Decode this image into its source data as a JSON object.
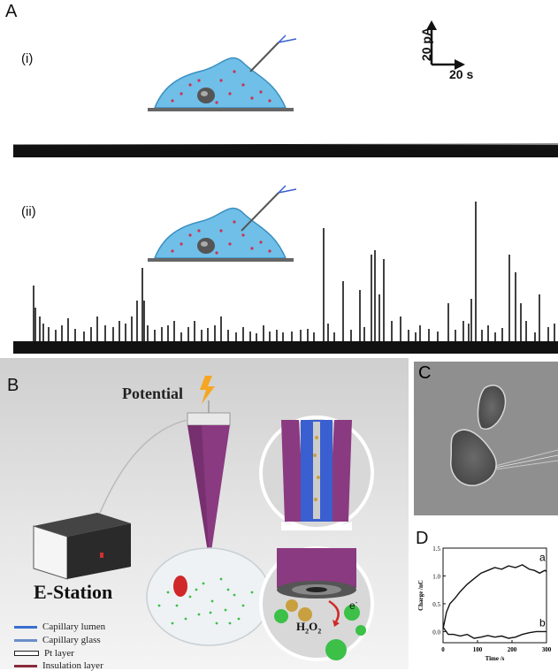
{
  "panel_a": {
    "letter": "A",
    "sub_i": "(i)",
    "sub_ii": "(ii)",
    "scale_y": "20 pA",
    "scale_x": "20 s",
    "spikes": [
      [
        23,
        65
      ],
      [
        25,
        40
      ],
      [
        30,
        30
      ],
      [
        34,
        22
      ],
      [
        40,
        18
      ],
      [
        48,
        15
      ],
      [
        55,
        20
      ],
      [
        62,
        28
      ],
      [
        70,
        16
      ],
      [
        80,
        13
      ],
      [
        88,
        18
      ],
      [
        95,
        30
      ],
      [
        104,
        20
      ],
      [
        113,
        18
      ],
      [
        120,
        25
      ],
      [
        127,
        22
      ],
      [
        134,
        30
      ],
      [
        140,
        48
      ],
      [
        146,
        85
      ],
      [
        148,
        48
      ],
      [
        152,
        20
      ],
      [
        160,
        15
      ],
      [
        168,
        18
      ],
      [
        175,
        20
      ],
      [
        182,
        25
      ],
      [
        190,
        12
      ],
      [
        198,
        18
      ],
      [
        205,
        25
      ],
      [
        213,
        15
      ],
      [
        220,
        17
      ],
      [
        228,
        20
      ],
      [
        235,
        30
      ],
      [
        243,
        15
      ],
      [
        252,
        12
      ],
      [
        260,
        18
      ],
      [
        268,
        13
      ],
      [
        275,
        11
      ],
      [
        283,
        20
      ],
      [
        290,
        13
      ],
      [
        298,
        15
      ],
      [
        305,
        12
      ],
      [
        315,
        13
      ],
      [
        325,
        15
      ],
      [
        333,
        16
      ],
      [
        340,
        12
      ],
      [
        351,
        130
      ],
      [
        356,
        22
      ],
      [
        363,
        12
      ],
      [
        373,
        70
      ],
      [
        382,
        15
      ],
      [
        392,
        60
      ],
      [
        397,
        18
      ],
      [
        405,
        100
      ],
      [
        409,
        105
      ],
      [
        414,
        55
      ],
      [
        419,
        95
      ],
      [
        428,
        25
      ],
      [
        438,
        30
      ],
      [
        447,
        15
      ],
      [
        455,
        12
      ],
      [
        460,
        20
      ],
      [
        470,
        16
      ],
      [
        480,
        13
      ],
      [
        492,
        45
      ],
      [
        500,
        15
      ],
      [
        509,
        25
      ],
      [
        515,
        22
      ],
      [
        518,
        50
      ],
      [
        523,
        160
      ],
      [
        530,
        15
      ],
      [
        537,
        20
      ],
      [
        545,
        12
      ],
      [
        553,
        17
      ],
      [
        561,
        100
      ],
      [
        568,
        80
      ],
      [
        574,
        45
      ],
      [
        580,
        25
      ],
      [
        590,
        12
      ],
      [
        595,
        55
      ],
      [
        605,
        18
      ],
      [
        612,
        22
      ],
      [
        620,
        28
      ],
      [
        628,
        35
      ]
    ]
  },
  "panel_b": {
    "letter": "B",
    "potential": "Potential",
    "station": "E-Station",
    "h2o2": "H",
    "h2o2_sub1": "2",
    "h2o2_o": "O",
    "h2o2_sub2": "2",
    "electron": "e",
    "electron_sup": "-",
    "legend": [
      {
        "label": "Capillary lumen",
        "color": "#3a6fd0"
      },
      {
        "label": "Capillary glass",
        "color": "#6a8ec8"
      },
      {
        "label": "Pt layer",
        "color": "#ffffff"
      },
      {
        "label": "Insulation layer",
        "color": "#8a2a3a"
      }
    ]
  },
  "panel_c": {
    "letter": "C"
  },
  "panel_d": {
    "letter": "D",
    "chart_data": {
      "type": "line",
      "xlabel": "Time /s",
      "ylabel": "Charge /nC",
      "xlim": [
        0,
        300
      ],
      "ylim": [
        -0.2,
        1.5
      ],
      "xticks": [
        "0",
        "100",
        "200",
        "300"
      ],
      "yticks": [
        "0.0",
        "0.5",
        "1.0",
        "1.5"
      ],
      "series": [
        {
          "name": "a",
          "x": [
            0,
            10,
            20,
            35,
            50,
            70,
            90,
            110,
            130,
            150,
            170,
            190,
            210,
            230,
            250,
            265,
            280,
            295,
            300
          ],
          "y": [
            0.05,
            0.35,
            0.5,
            0.6,
            0.72,
            0.85,
            0.95,
            1.05,
            1.1,
            1.15,
            1.12,
            1.18,
            1.15,
            1.2,
            1.12,
            1.1,
            1.05,
            1.1,
            1.08
          ]
        },
        {
          "name": "b",
          "x": [
            0,
            15,
            30,
            50,
            70,
            90,
            110,
            130,
            150,
            170,
            190,
            210,
            230,
            250,
            270,
            290,
            300
          ],
          "y": [
            0.08,
            -0.05,
            -0.05,
            -0.08,
            -0.05,
            -0.12,
            -0.1,
            -0.07,
            -0.1,
            -0.08,
            -0.12,
            -0.1,
            -0.05,
            -0.02,
            0.0,
            0.0,
            0.0
          ]
        }
      ]
    }
  }
}
